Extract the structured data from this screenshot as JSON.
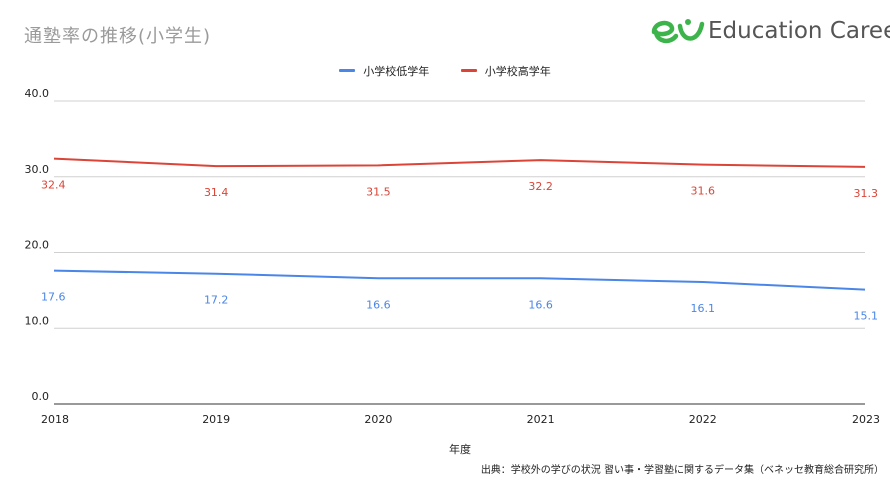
{
  "header": {
    "title": "通塾率の推移(小学生)",
    "logo_text": "Education Career"
  },
  "footer": {
    "source": "出典：学校外の学びの状況 習い事・学習塾に関するデータ集（ベネッセ教育総合研究所）"
  },
  "colors": {
    "low_grade": "#4a86e8",
    "high_grade": "#db4437",
    "logo_green": "#3cb44b"
  },
  "chart_data": {
    "type": "line",
    "x": [
      "2018",
      "2019",
      "2020",
      "2021",
      "2022",
      "2023"
    ],
    "xlabel": "年度",
    "ylabel": "",
    "ylim": [
      0,
      40
    ],
    "yticks": [
      "0.0",
      "10.0",
      "20.0",
      "30.0",
      "40.0"
    ],
    "grid": true,
    "legend_position": "top-center",
    "series": [
      {
        "name": "小学校低学年",
        "color": "#4a86e8",
        "values": [
          17.6,
          17.2,
          16.6,
          16.6,
          16.1,
          15.1
        ],
        "labels": [
          "17.6",
          "17.2",
          "16.6",
          "16.6",
          "16.1",
          "15.1"
        ]
      },
      {
        "name": "小学校高学年",
        "color": "#db4437",
        "values": [
          32.4,
          31.4,
          31.5,
          32.2,
          31.6,
          31.3
        ],
        "labels": [
          "32.4",
          "31.4",
          "31.5",
          "32.2",
          "31.6",
          "31.3"
        ]
      }
    ]
  }
}
